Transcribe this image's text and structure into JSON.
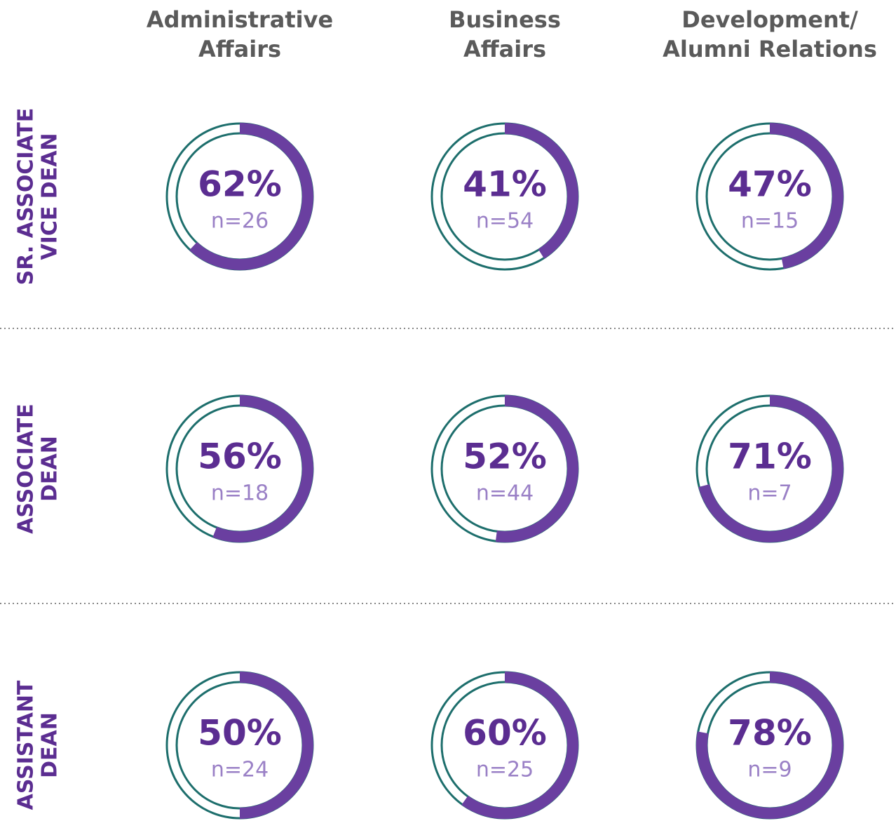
{
  "chart_data": {
    "type": "donut",
    "columns": [
      [
        "Administrative",
        "Affairs"
      ],
      [
        "Business",
        "Affairs"
      ],
      [
        "Development/",
        "Alumni Relations"
      ]
    ],
    "series": [
      {
        "name": [
          "SR. ASSOCIATE",
          "VICE DEAN"
        ],
        "values": [
          62,
          41,
          47
        ],
        "value_labels": [
          "62%",
          "41%",
          "47%"
        ],
        "counts": [
          "n=26",
          "n=54",
          "n=15"
        ]
      },
      {
        "name": [
          "ASSOCIATE",
          "DEAN"
        ],
        "values": [
          56,
          52,
          71
        ],
        "value_labels": [
          "56%",
          "52%",
          "71%"
        ],
        "counts": [
          "n=18",
          "n=44",
          "n=7"
        ]
      },
      {
        "name": [
          "ASSISTANT",
          "DEAN"
        ],
        "values": [
          50,
          60,
          78
        ],
        "value_labels": [
          "50%",
          "60%",
          "78%"
        ],
        "counts": [
          "n=24",
          "n=25",
          "n=9"
        ]
      }
    ],
    "color": "#6a3fa0",
    "ring_color": "#1d6e6c"
  }
}
